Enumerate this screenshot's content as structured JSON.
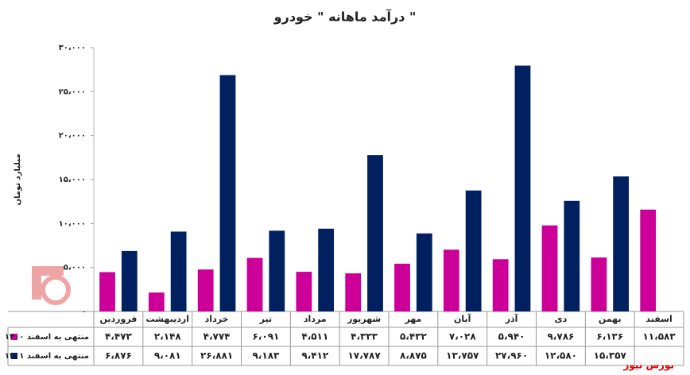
{
  "chart_data": {
    "type": "bar",
    "title": "درآمد ماهانه \" خودرو \"",
    "y_label": "میلیارد تومان",
    "categories": [
      "فروردین",
      "اردیبهشت",
      "خرداد",
      "تیر",
      "مرداد",
      "شهریور",
      "مهر",
      "آبان",
      "آذر",
      "دی",
      "بهمن",
      "اسفند"
    ],
    "series": [
      {
        "name": "منتهی به اسفند ۱۴۰۰",
        "color": "#cc0099",
        "values": [
          4473,
          2148,
          4774,
          6091,
          4511,
          4333,
          5432,
          7028,
          5940,
          9786,
          6136,
          11583
        ],
        "value_labels": [
          "۴،۴۷۳",
          "۲،۱۴۸",
          "۴،۷۷۴",
          "۶،۰۹۱",
          "۴،۵۱۱",
          "۴،۳۳۳",
          "۵،۴۳۲",
          "۷،۰۲۸",
          "۵،۹۴۰",
          "۹،۷۸۶",
          "۶،۱۳۶",
          "۱۱،۵۸۳"
        ]
      },
      {
        "name": "منتهی به اسفند ۱۴۰۱",
        "color": "#002060",
        "values": [
          6876,
          9081,
          26881,
          9183,
          9412,
          17787,
          8875,
          13757,
          27960,
          12580,
          15357,
          null
        ],
        "value_labels": [
          "۶،۸۷۶",
          "۹،۰۸۱",
          "۲۶،۸۸۱",
          "۹،۱۸۳",
          "۹،۴۱۲",
          "۱۷،۷۸۷",
          "۸،۸۷۵",
          "۱۳،۷۵۷",
          "۲۷،۹۶۰",
          "۱۲،۵۸۰",
          "۱۵،۳۵۷",
          null
        ]
      }
    ],
    "ylim": [
      0,
      30000
    ],
    "yticks": [
      {
        "value": 0,
        "label": "-"
      },
      {
        "value": 5000,
        "label": "۵،۰۰۰"
      },
      {
        "value": 10000,
        "label": "۱۰،۰۰۰"
      },
      {
        "value": 15000,
        "label": "۱۵،۰۰۰"
      },
      {
        "value": 20000,
        "label": "۲۰،۰۰۰"
      },
      {
        "value": 25000,
        "label": "۲۵،۰۰۰"
      },
      {
        "value": 30000,
        "label": "۳۰،۰۰۰"
      }
    ],
    "grid": false,
    "watermark": "بورس نیوز"
  }
}
